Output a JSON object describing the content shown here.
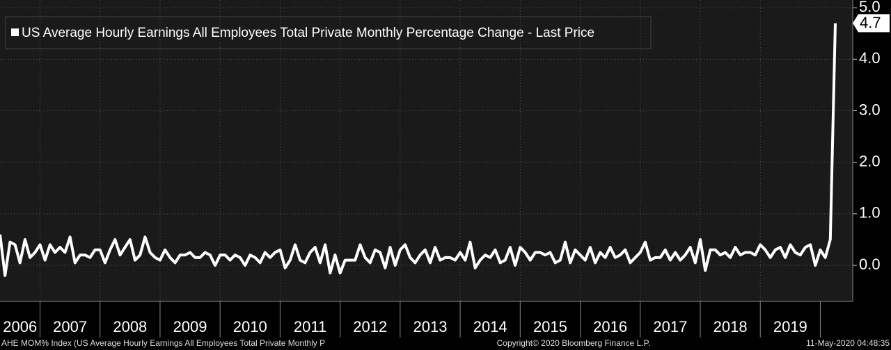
{
  "chart_data": {
    "type": "line",
    "legend": "US Average Hourly Earnings All Employees Total Private Monthly Percentage Change - Last Price",
    "x_labels": [
      "2006",
      "2007",
      "2008",
      "2009",
      "2010",
      "2011",
      "2012",
      "2013",
      "2014",
      "2015",
      "2016",
      "2017",
      "2018",
      "2019"
    ],
    "series": [
      {
        "name": "US Average Hourly Earnings All Employees Total Private Monthly Percentage Change - Last Price",
        "color": "#ffffff",
        "values": [
          0.6,
          -0.2,
          0.45,
          0.4,
          0.05,
          0.5,
          0.15,
          0.25,
          0.4,
          0.1,
          0.4,
          0.25,
          0.35,
          0.25,
          0.55,
          0.05,
          0.2,
          0.2,
          0.15,
          0.3,
          0.3,
          0.05,
          0.3,
          0.5,
          0.2,
          0.35,
          0.5,
          0.1,
          0.2,
          0.55,
          0.25,
          0.15,
          0.1,
          0.3,
          0.15,
          0.05,
          0.2,
          0.2,
          0.25,
          0.15,
          0.15,
          0.25,
          0.2,
          0.0,
          0.2,
          0.2,
          0.1,
          0.2,
          0.15,
          0.0,
          0.2,
          0.15,
          0.05,
          0.25,
          0.15,
          0.25,
          0.3,
          -0.05,
          0.1,
          0.4,
          0.1,
          0.05,
          0.25,
          0.35,
          0.05,
          0.4,
          -0.15,
          0.2,
          -0.15,
          0.1,
          0.1,
          0.1,
          0.4,
          0.15,
          0.05,
          0.3,
          0.25,
          -0.05,
          0.35,
          0.0,
          0.3,
          0.4,
          0.15,
          0.05,
          0.2,
          0.3,
          0.05,
          0.35,
          0.1,
          0.15,
          0.15,
          0.1,
          0.25,
          0.1,
          0.45,
          -0.05,
          0.1,
          0.2,
          0.15,
          0.3,
          0.05,
          0.1,
          0.35,
          0.0,
          0.35,
          0.25,
          0.1,
          0.25,
          0.25,
          0.2,
          0.25,
          0.05,
          0.1,
          0.45,
          0.05,
          0.3,
          0.2,
          0.1,
          0.35,
          0.05,
          0.25,
          0.15,
          0.35,
          0.15,
          0.2,
          0.3,
          0.05,
          0.15,
          0.25,
          0.45,
          0.1,
          0.15,
          0.15,
          0.3,
          0.1,
          0.25,
          0.1,
          0.2,
          0.35,
          0.05,
          0.5,
          -0.1,
          0.3,
          0.3,
          0.2,
          0.25,
          0.15,
          0.35,
          0.2,
          0.25,
          0.25,
          0.2,
          0.4,
          0.3,
          0.15,
          0.3,
          0.35,
          0.15,
          0.4,
          0.25,
          0.2,
          0.35,
          0.4,
          0.0,
          0.3,
          0.15,
          0.5,
          4.7
        ]
      }
    ],
    "ylim": [
      -0.7,
      5.15
    ],
    "yticks": [
      {
        "value": 0,
        "label": "0.0"
      },
      {
        "value": 1,
        "label": "1.0"
      },
      {
        "value": 2,
        "label": "2.0"
      },
      {
        "value": 3,
        "label": "3.0"
      },
      {
        "value": 4,
        "label": "4.0"
      },
      {
        "value": 5,
        "label": "5.0"
      }
    ],
    "grid": true
  },
  "footer": {
    "left": "AHE MOM% Index (US Average Hourly Earnings All Employees Total Private Monthly P",
    "center": "Copyright© 2020 Bloomberg Finance L.P.",
    "right": "11-May-2020 04:48:35"
  }
}
